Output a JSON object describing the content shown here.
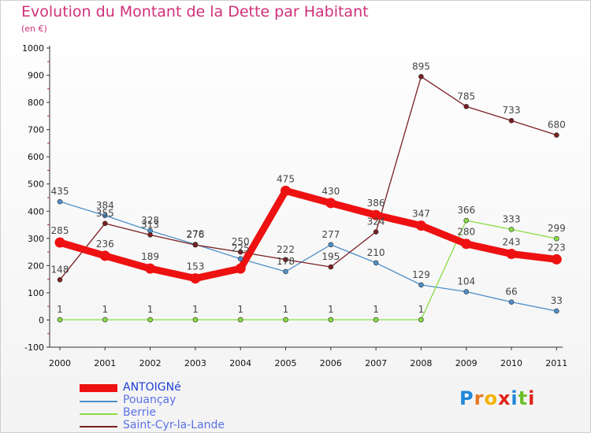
{
  "chart_data": {
    "type": "line",
    "title": "Evolution du Montant de la Dette par Habitant",
    "subtitle": "(en €)",
    "x": [
      "2000",
      "2001",
      "2002",
      "2003",
      "2004",
      "2005",
      "2006",
      "2007",
      "2008",
      "2009",
      "2010",
      "2011"
    ],
    "ylim": [
      -100,
      1000
    ],
    "yticks": [
      "-100",
      "0",
      "100",
      "200",
      "300",
      "400",
      "500",
      "600",
      "700",
      "800",
      "900",
      "1000"
    ],
    "grid": false,
    "legend_position": "bottom-left",
    "series": [
      {
        "name": "ANTOIGNé",
        "color": "#ee1111",
        "values": [
          285,
          236,
          189,
          153,
          189,
          475,
          430,
          386,
          347,
          280,
          243,
          223
        ],
        "labels": [
          "285",
          "236",
          "189",
          "153",
          "",
          "475",
          "430",
          "386",
          "347",
          "280",
          "243",
          "223"
        ]
      },
      {
        "name": "Pouançay",
        "color": "#4f8fc9",
        "values": [
          435,
          384,
          328,
          278,
          225,
          178,
          277,
          210,
          129,
          104,
          66,
          33
        ],
        "labels": [
          "435",
          "384",
          "328",
          "278",
          "225",
          "178",
          "277",
          "210",
          "129",
          "104",
          "66",
          "33"
        ]
      },
      {
        "name": "Berrie",
        "color": "#88dd44",
        "values": [
          1,
          1,
          1,
          1,
          1,
          1,
          1,
          1,
          1,
          366,
          333,
          299
        ],
        "labels": [
          "1",
          "1",
          "1",
          "1",
          "1",
          "1",
          "1",
          "1",
          "1",
          "366",
          "333",
          "299"
        ]
      },
      {
        "name": "Saint-Cyr-la-Lande",
        "color": "#7a1f22",
        "values": [
          148,
          355,
          313,
          276,
          250,
          222,
          195,
          324,
          895,
          785,
          733,
          680
        ],
        "labels": [
          "148",
          "355",
          "313",
          "276",
          "250",
          "222",
          "195",
          "324",
          "895",
          "785",
          "733",
          "680"
        ]
      }
    ]
  },
  "logo": {
    "text": "Proxiti"
  }
}
